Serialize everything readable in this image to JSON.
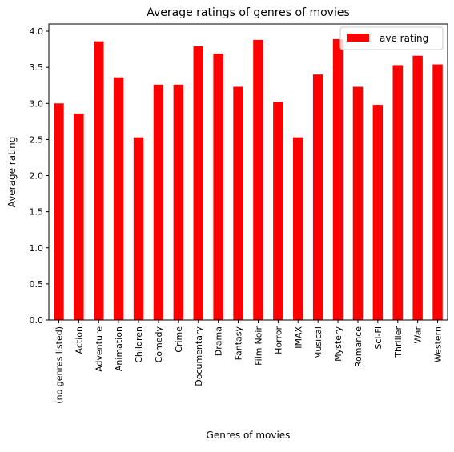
{
  "chart_data": {
    "type": "bar",
    "title": "Average ratings of genres of movies",
    "xlabel": "Genres of movies",
    "ylabel": "Average rating",
    "ylim": [
      0,
      4.1
    ],
    "yticks": [
      "0.0",
      "0.5",
      "1.0",
      "1.5",
      "2.0",
      "2.5",
      "3.0",
      "3.5",
      "4.0"
    ],
    "grid": false,
    "legend_position": "top-right",
    "categories": [
      "(no genres listed)",
      "Action",
      "Adventure",
      "Animation",
      "Children",
      "Comedy",
      "Crime",
      "Documentary",
      "Drama",
      "Fantasy",
      "Film-Noir",
      "Horror",
      "IMAX",
      "Musical",
      "Mystery",
      "Romance",
      "Sci-Fi",
      "Thriller",
      "War",
      "Western"
    ],
    "series": [
      {
        "name": "ave rating",
        "color": "#ff0000",
        "values": [
          3.0,
          2.86,
          3.86,
          3.36,
          2.53,
          3.26,
          3.26,
          3.79,
          3.69,
          3.23,
          3.88,
          3.02,
          2.53,
          3.4,
          3.89,
          3.23,
          2.98,
          3.53,
          3.66,
          3.54
        ]
      }
    ]
  }
}
